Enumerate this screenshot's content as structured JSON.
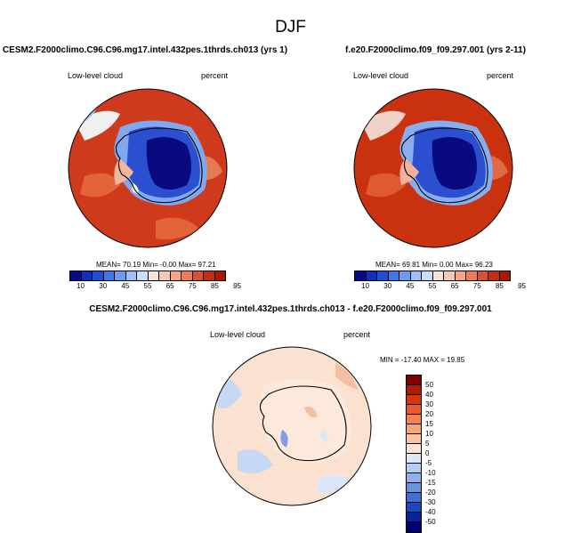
{
  "page_title": "DJF",
  "panels": [
    {
      "case_title": "CESM2.F2000climo.C96.C96.mg17.intel.432pes.1thrds.ch013 (yrs 1)",
      "variable": "Low-level cloud",
      "units": "percent",
      "stats": "MEAN=  70.19  Min=  -0.00  Max=  97.21"
    },
    {
      "case_title": "f.e20.F2000climo.f09_f09.297.001 (yrs 2-11)",
      "variable": "Low-level cloud",
      "units": "percent",
      "stats": "MEAN=  69.81  Min=   0.00  Max=  96.23"
    }
  ],
  "diff_panel": {
    "case_title": "CESM2.F2000climo.C96.C96.mg17.intel.432pes.1thrds.ch013 - f.e20.F2000climo.f09_f09.297.001",
    "variable": "Low-level cloud",
    "units": "percent",
    "stats": "MIN = -17.40 MAX =  19.85"
  },
  "colorbar_abs": {
    "ticks": [
      "10",
      "30",
      "45",
      "55",
      "65",
      "75",
      "85",
      "95"
    ],
    "colors": [
      "#08088a",
      "#0f2fbf",
      "#1c4fd8",
      "#3f78ea",
      "#6a9af2",
      "#9ebff7",
      "#c9dcf9",
      "#f4e2dc",
      "#f8c7b5",
      "#f6a585",
      "#ee7b55",
      "#e04f2d",
      "#c72d14",
      "#a81a05"
    ]
  },
  "colorbar_diff": {
    "ticks": [
      "50",
      "40",
      "30",
      "20",
      "15",
      "10",
      "5",
      "0",
      "-5",
      "-10",
      "-15",
      "-20",
      "-30",
      "-40",
      "-50"
    ],
    "colors": [
      "#800000",
      "#b3180a",
      "#d9330f",
      "#ee5a2a",
      "#f6824e",
      "#f9a474",
      "#fbc4a0",
      "#fde4d0",
      "#dbe8f9",
      "#b6cdf3",
      "#8fb1ec",
      "#6a93e2",
      "#3f6fd4",
      "#1d48bb",
      "#0a229a",
      "#00007a"
    ]
  }
}
